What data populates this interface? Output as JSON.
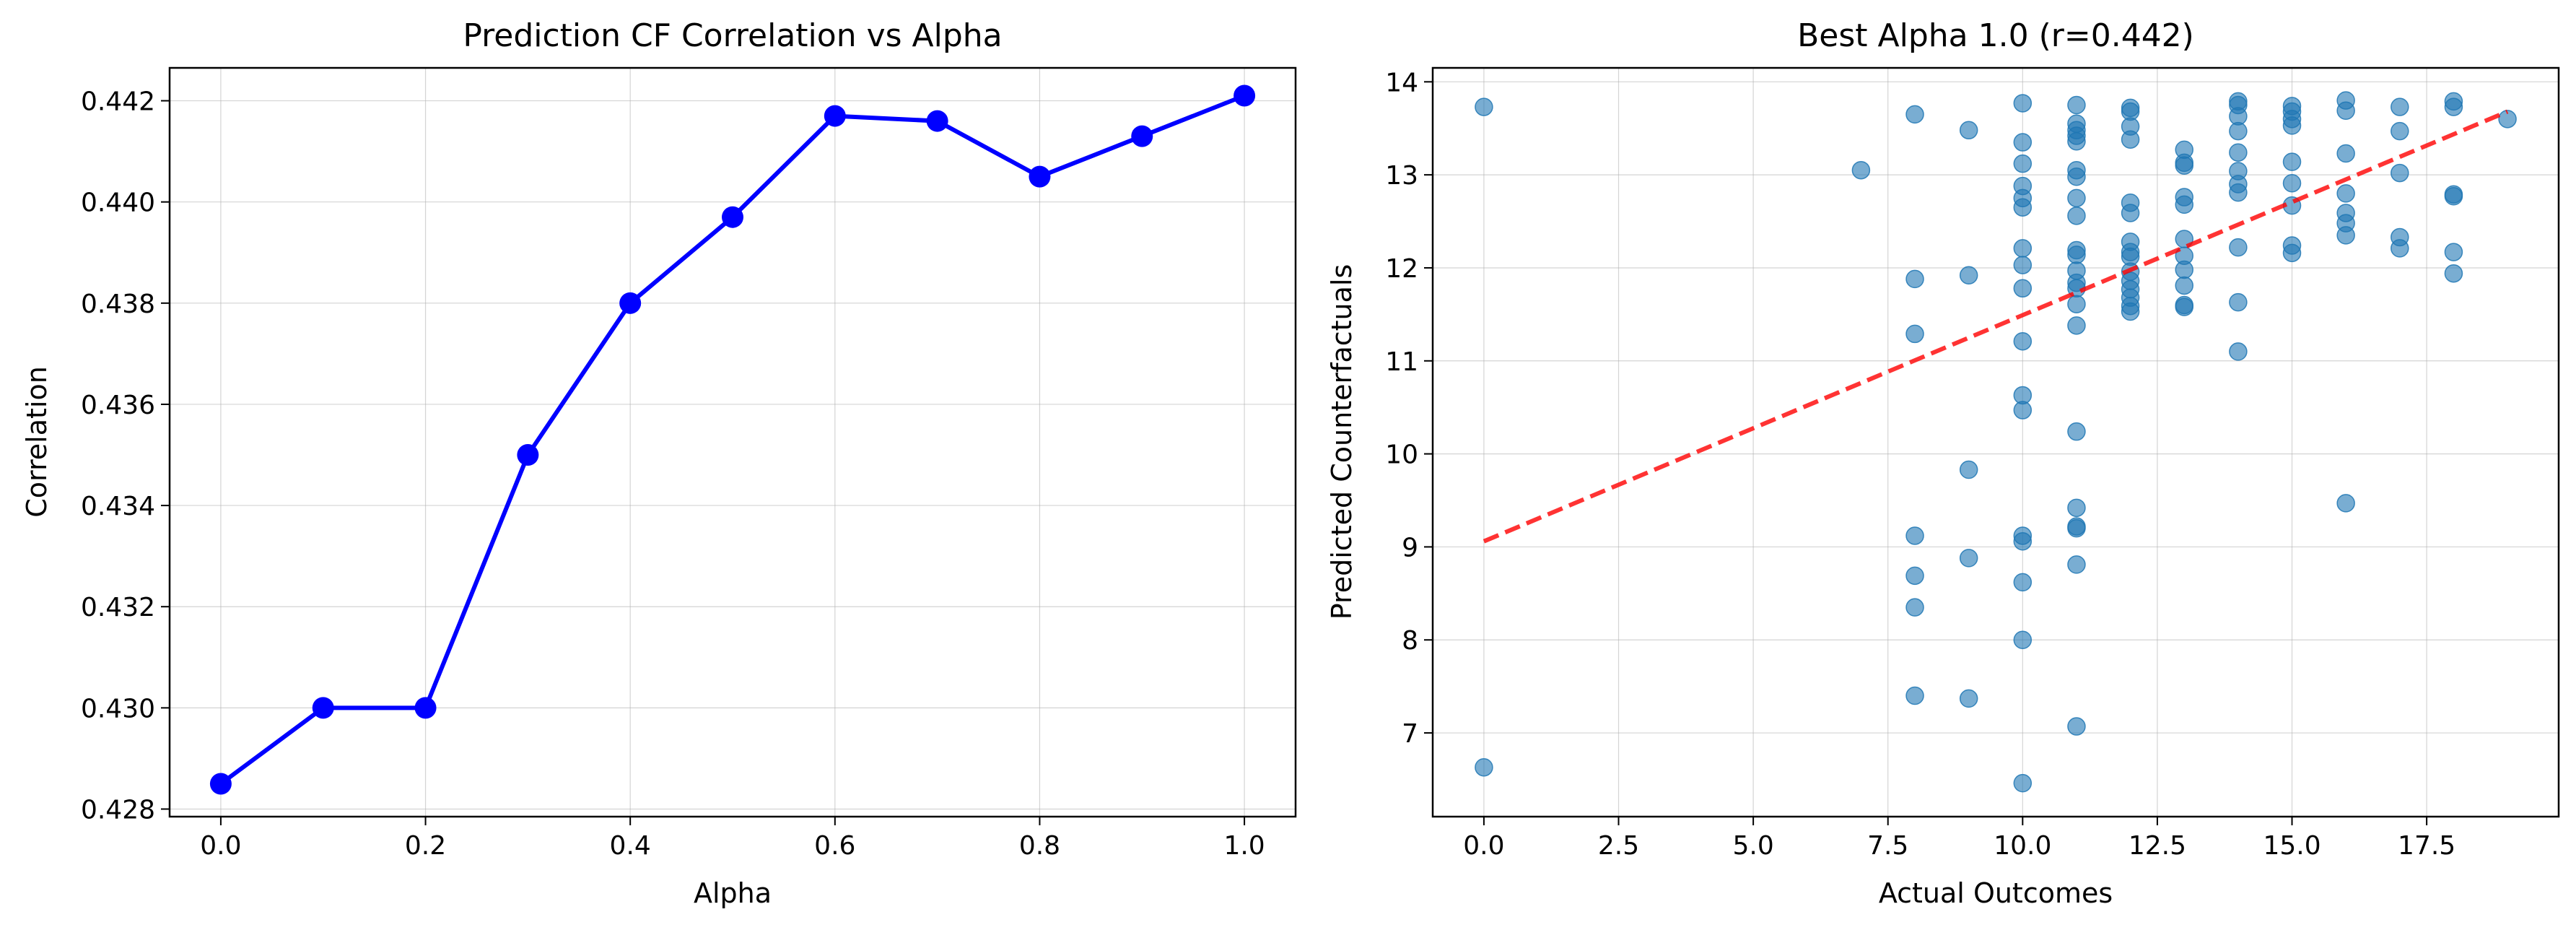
{
  "chart_data": [
    {
      "type": "line",
      "title": "Prediction CF Correlation vs Alpha",
      "xlabel": "Alpha",
      "ylabel": "Correlation",
      "xlim": [
        -0.05,
        1.05
      ],
      "ylim": [
        0.42785,
        0.44265
      ],
      "xticks": [
        0.0,
        0.2,
        0.4,
        0.6,
        0.8,
        1.0
      ],
      "xtick_labels": [
        "0.0",
        "0.2",
        "0.4",
        "0.6",
        "0.8",
        "1.0"
      ],
      "yticks": [
        0.428,
        0.43,
        0.432,
        0.434,
        0.436,
        0.438,
        0.44,
        0.442
      ],
      "ytick_labels": [
        "0.428",
        "0.430",
        "0.432",
        "0.434",
        "0.436",
        "0.438",
        "0.440",
        "0.442"
      ],
      "grid": true,
      "color": "#0000ff",
      "series": [
        {
          "x": [
            0.0,
            0.1,
            0.2,
            0.3,
            0.4,
            0.5,
            0.6,
            0.7,
            0.8,
            0.9,
            1.0
          ],
          "y": [
            0.4285,
            0.43,
            0.43,
            0.435,
            0.438,
            0.4397,
            0.4417,
            0.4416,
            0.4405,
            0.4413,
            0.4421
          ]
        }
      ]
    },
    {
      "type": "scatter",
      "title": "Best Alpha 1.0 (r=0.442)",
      "xlabel": "Actual Outcomes",
      "ylabel": "Predicted Counterfactuals",
      "xlim": [
        -0.95,
        19.95
      ],
      "ylim": [
        6.1,
        14.15
      ],
      "xticks": [
        0,
        2.5,
        5,
        7.5,
        10,
        12.5,
        15,
        17.5
      ],
      "xtick_labels": [
        "0.0",
        "2.5",
        "5.0",
        "7.5",
        "10.0",
        "12.5",
        "15.0",
        "17.5"
      ],
      "yticks": [
        7,
        8,
        9,
        10,
        11,
        12,
        13,
        14
      ],
      "ytick_labels": [
        "7",
        "8",
        "9",
        "10",
        "11",
        "12",
        "13",
        "14"
      ],
      "grid": true,
      "point_color": "#1f77b4",
      "trend_color": "#ff0000",
      "points": [
        [
          0,
          13.73
        ],
        [
          0,
          6.63
        ],
        [
          7,
          13.05
        ],
        [
          8,
          13.65
        ],
        [
          8,
          11.88
        ],
        [
          8,
          11.29
        ],
        [
          8,
          9.12
        ],
        [
          8,
          8.69
        ],
        [
          8,
          8.35
        ],
        [
          8,
          7.4
        ],
        [
          9,
          13.48
        ],
        [
          9,
          11.92
        ],
        [
          9,
          9.83
        ],
        [
          9,
          8.88
        ],
        [
          9,
          7.37
        ],
        [
          10,
          13.77
        ],
        [
          10,
          13.35
        ],
        [
          10,
          13.12
        ],
        [
          10,
          12.88
        ],
        [
          10,
          12.75
        ],
        [
          10,
          12.65
        ],
        [
          10,
          12.21
        ],
        [
          10,
          12.03
        ],
        [
          10,
          11.78
        ],
        [
          10,
          11.21
        ],
        [
          10,
          10.63
        ],
        [
          10,
          10.47
        ],
        [
          10,
          9.12
        ],
        [
          10,
          9.06
        ],
        [
          10,
          8.62
        ],
        [
          10,
          8.0
        ],
        [
          10,
          6.46
        ],
        [
          11,
          13.75
        ],
        [
          11,
          13.55
        ],
        [
          11,
          13.48
        ],
        [
          11,
          13.42
        ],
        [
          11,
          13.36
        ],
        [
          11,
          13.05
        ],
        [
          11,
          12.98
        ],
        [
          11,
          12.75
        ],
        [
          11,
          12.56
        ],
        [
          11,
          12.19
        ],
        [
          11,
          12.14
        ],
        [
          11,
          11.97
        ],
        [
          11,
          11.84
        ],
        [
          11,
          11.78
        ],
        [
          11,
          11.61
        ],
        [
          11,
          11.38
        ],
        [
          11,
          10.24
        ],
        [
          11,
          9.42
        ],
        [
          11,
          9.22
        ],
        [
          11,
          9.2
        ],
        [
          11,
          8.81
        ],
        [
          11,
          7.07
        ],
        [
          12,
          13.72
        ],
        [
          12,
          13.68
        ],
        [
          12,
          13.52
        ],
        [
          12,
          13.38
        ],
        [
          12,
          12.7
        ],
        [
          12,
          12.59
        ],
        [
          12,
          12.28
        ],
        [
          12,
          12.17
        ],
        [
          12,
          12.12
        ],
        [
          12,
          11.96
        ],
        [
          12,
          11.86
        ],
        [
          12,
          11.77
        ],
        [
          12,
          11.68
        ],
        [
          12,
          11.59
        ],
        [
          12,
          11.53
        ],
        [
          13,
          13.27
        ],
        [
          13,
          13.13
        ],
        [
          13,
          13.1
        ],
        [
          13,
          12.76
        ],
        [
          13,
          12.68
        ],
        [
          13,
          12.31
        ],
        [
          13,
          12.13
        ],
        [
          13,
          11.98
        ],
        [
          13,
          11.81
        ],
        [
          13,
          11.6
        ],
        [
          13,
          11.58
        ],
        [
          14,
          13.79
        ],
        [
          14,
          13.75
        ],
        [
          14,
          13.63
        ],
        [
          14,
          13.47
        ],
        [
          14,
          13.24
        ],
        [
          14,
          13.04
        ],
        [
          14,
          12.9
        ],
        [
          14,
          12.81
        ],
        [
          14,
          12.22
        ],
        [
          14,
          11.63
        ],
        [
          14,
          11.1
        ],
        [
          15,
          13.74
        ],
        [
          15,
          13.68
        ],
        [
          15,
          13.6
        ],
        [
          15,
          13.53
        ],
        [
          15,
          13.14
        ],
        [
          15,
          12.91
        ],
        [
          15,
          12.67
        ],
        [
          15,
          12.24
        ],
        [
          15,
          12.16
        ],
        [
          16,
          13.8
        ],
        [
          16,
          13.69
        ],
        [
          16,
          13.23
        ],
        [
          16,
          12.8
        ],
        [
          16,
          12.59
        ],
        [
          16,
          12.48
        ],
        [
          16,
          12.35
        ],
        [
          16,
          9.47
        ],
        [
          17,
          13.73
        ],
        [
          17,
          13.47
        ],
        [
          17,
          13.02
        ],
        [
          17,
          12.33
        ],
        [
          17,
          12.21
        ],
        [
          18,
          13.79
        ],
        [
          18,
          13.73
        ],
        [
          18,
          12.79
        ],
        [
          18,
          12.77
        ],
        [
          18,
          12.17
        ],
        [
          18,
          11.94
        ],
        [
          19,
          13.6
        ]
      ],
      "trend_line": {
        "x": [
          0,
          19
        ],
        "y": [
          9.06,
          13.68
        ]
      }
    }
  ]
}
